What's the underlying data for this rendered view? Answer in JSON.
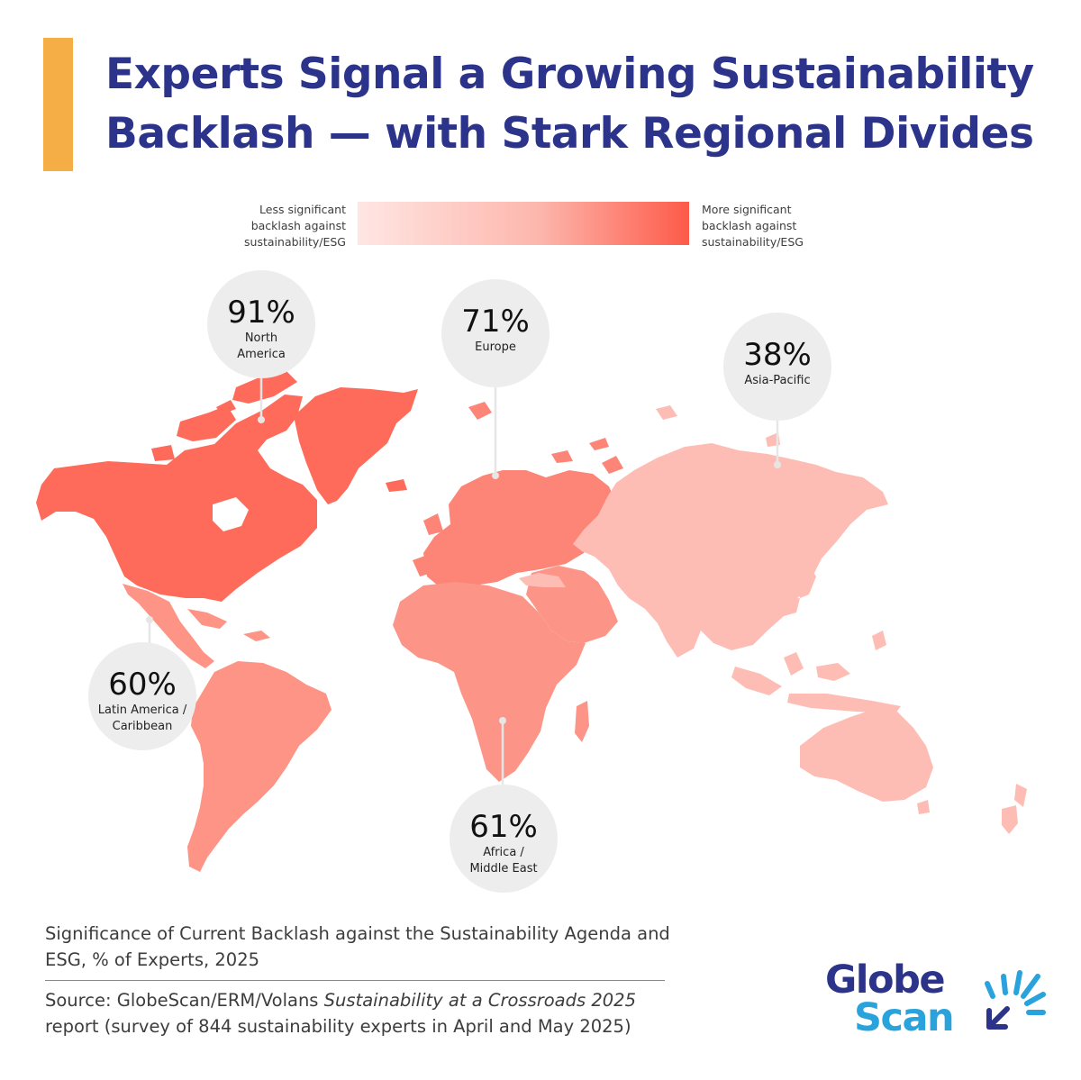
{
  "title": {
    "line1": "Experts Signal a Growing Sustainability",
    "line2": "Backlash — with Stark Regional Divides"
  },
  "legend": {
    "low_line1": "Less significant",
    "low_line2": "backlash against",
    "low_line3": "sustainability/ESG",
    "high_line1": "More significant",
    "high_line2": "backlash against",
    "high_line3": "sustainability/ESG",
    "color_low": "#ffe6e3",
    "color_high": "#fd5a48"
  },
  "regions": {
    "north_america": {
      "pct": "91%",
      "name_line1": "North",
      "name_line2": "America",
      "value": 91,
      "color": "#fe6b5b"
    },
    "europe": {
      "pct": "71%",
      "name_line1": "Europe",
      "name_line2": "",
      "value": 71,
      "color": "#fc8577"
    },
    "asia_pacific": {
      "pct": "38%",
      "name_line1": "Asia-Pacific",
      "name_line2": "",
      "value": 38,
      "color": "#fdbdb4"
    },
    "latin_america": {
      "pct": "60%",
      "name_line1": "Latin America /",
      "name_line2": "Caribbean",
      "value": 60,
      "color": "#fd9485"
    },
    "africa_middle_east": {
      "pct": "61%",
      "name_line1": "Africa /",
      "name_line2": "Middle East",
      "value": 61,
      "color": "#fc9587"
    }
  },
  "caption": "Significance of Current Backlash against the Sustainability Agenda and ESG, % of Experts, 2025",
  "source": {
    "prefix": "Source: GlobeScan/ERM/Volans ",
    "report": "Sustainability at a Crossroads 2025",
    "suffix": " report (survey of 844 sustainability experts in April and May 2025)"
  },
  "logo": {
    "line1": "Globe",
    "line2": "Scan",
    "color_dark": "#2b338a",
    "color_light": "#2aa3dc"
  }
}
